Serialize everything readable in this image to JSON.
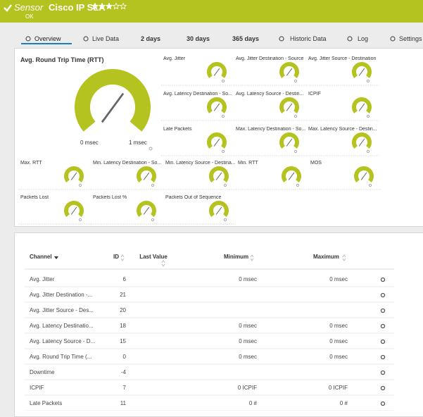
{
  "header": {
    "sensor": "Sensor",
    "name": "Cisco IP SLA",
    "status": "OK"
  },
  "tabs": [
    "Overview",
    "Live Data",
    "2 days",
    "30 days",
    "365 days",
    "Historic Data",
    "Log",
    "Settings"
  ],
  "gauges": {
    "main": {
      "title": "Avg. Round Trip Time (RTT)",
      "min_label": "0 msec",
      "max_label": "1 msec"
    },
    "tiles": [
      "Avg. Jitter",
      "Avg. Jitter Destination - Source",
      "Avg. Jitter Source - Destination",
      "Avg. Latency Destination - So...",
      "Avg. Latency Source - Destin...",
      "ICPIF",
      "Late Packets",
      "Max. Latency Destination - So...",
      "Max. Latency Source - Destin...",
      "Max. RTT",
      "Min. Latency Destination - So...",
      "Min. Latency Source - Destina...",
      "Min. RTT",
      "MOS",
      "Packets Lost",
      "Packets Lost %",
      "Packets Out of Sequence"
    ]
  },
  "table": {
    "columns": [
      "Channel",
      "ID",
      "Last Value",
      "Minimum",
      "Maximum"
    ],
    "rows": [
      {
        "channel": "Avg. Jitter",
        "id": 6,
        "minimum": "0 msec",
        "maximum": "0 msec"
      },
      {
        "channel": "Avg. Jitter Destination -...",
        "id": 21
      },
      {
        "channel": "Avg. Jitter Source - Des...",
        "id": 20
      },
      {
        "channel": "Avg. Latency Destinatio...",
        "id": 18,
        "minimum": "0 msec",
        "maximum": "0 msec"
      },
      {
        "channel": "Avg. Latency Source - D...",
        "id": 15,
        "minimum": "0 msec",
        "maximum": "0 msec"
      },
      {
        "channel": "Avg. Round Trip Time (...",
        "id": 0,
        "minimum": "0 msec",
        "maximum": "0 msec"
      },
      {
        "channel": "Downtime",
        "id": -4
      },
      {
        "channel": "ICPIF",
        "id": 7,
        "minimum": "0 ICPIF",
        "maximum": "0 ICPIF"
      },
      {
        "channel": "Late Packets",
        "id": 11,
        "minimum": "0 #",
        "maximum": "0 #"
      }
    ]
  }
}
